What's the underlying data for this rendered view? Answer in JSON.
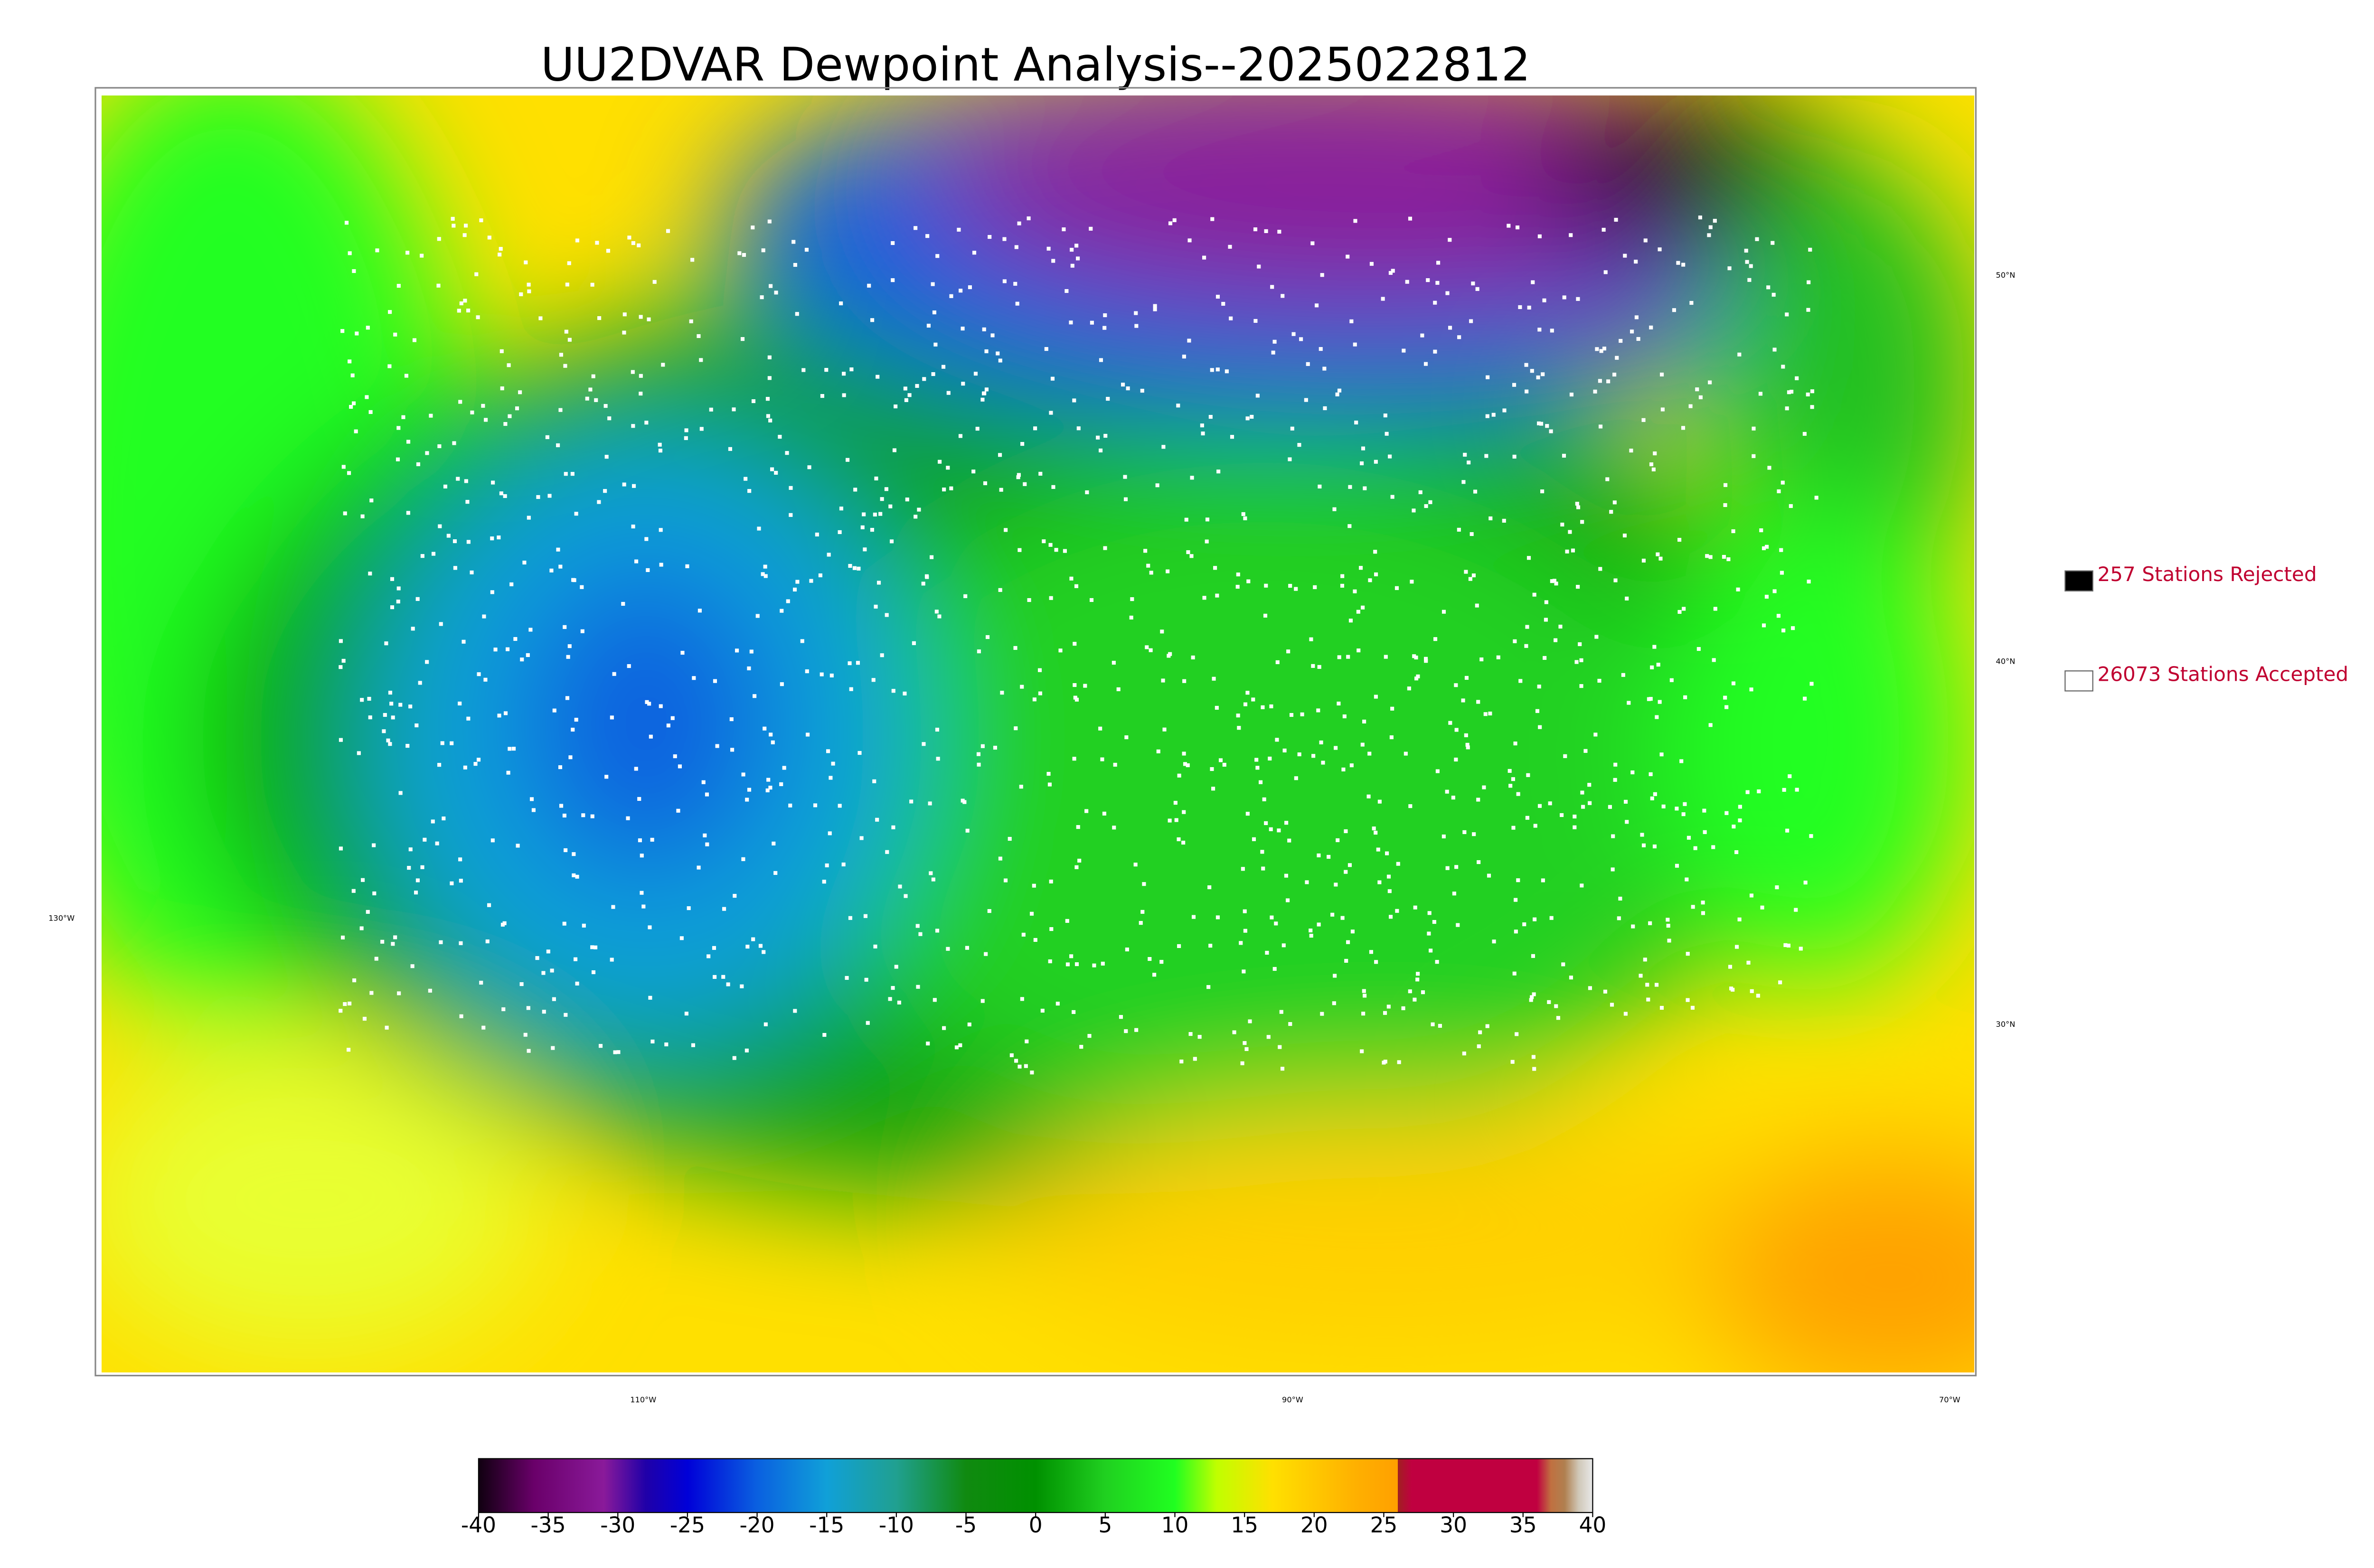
{
  "title": "UU2DVAR Dewpoint Analysis--2025022812",
  "legend": [
    {
      "label": "257 Stations Rejected",
      "color": "#000000"
    },
    {
      "label": "26073 Stations Accepted",
      "color": "#ffffff"
    }
  ],
  "latitude_labels": [
    "50°N",
    "40°N",
    "30°N"
  ],
  "longitude_labels": [
    "130°W",
    "110°W",
    "90°W",
    "70°W"
  ],
  "colorbar": {
    "range": [
      -40,
      40
    ],
    "ticks": [
      -40,
      -35,
      -30,
      -25,
      -20,
      -15,
      -10,
      -5,
      0,
      5,
      10,
      15,
      20,
      25,
      30,
      35,
      40
    ],
    "stops": [
      {
        "value": -40,
        "color": "#100010"
      },
      {
        "value": -36,
        "color": "#6a006a"
      },
      {
        "value": -31,
        "color": "#8a1a9a"
      },
      {
        "value": -28,
        "color": "#2000a8"
      },
      {
        "value": -25,
        "color": "#0000d8"
      },
      {
        "value": -20,
        "color": "#0a60e0"
      },
      {
        "value": -15,
        "color": "#10a0d8"
      },
      {
        "value": -10,
        "color": "#20a090"
      },
      {
        "value": -5,
        "color": "#108a10"
      },
      {
        "value": 0,
        "color": "#009000"
      },
      {
        "value": 5,
        "color": "#20d020"
      },
      {
        "value": 10,
        "color": "#20ff20"
      },
      {
        "value": 13,
        "color": "#c0ff00"
      },
      {
        "value": 17,
        "color": "#ffe000"
      },
      {
        "value": 23,
        "color": "#ffb000"
      },
      {
        "value": 26,
        "color": "#ffa000"
      },
      {
        "value": 26,
        "color": "#a02020"
      },
      {
        "value": 27,
        "color": "#c00040"
      },
      {
        "value": 36,
        "color": "#c00040"
      },
      {
        "value": 37,
        "color": "#c07040"
      },
      {
        "value": 38,
        "color": "#b08050"
      },
      {
        "value": 39,
        "color": "#d0c8b8"
      },
      {
        "value": 40,
        "color": "#e8e8e8"
      }
    ]
  }
}
